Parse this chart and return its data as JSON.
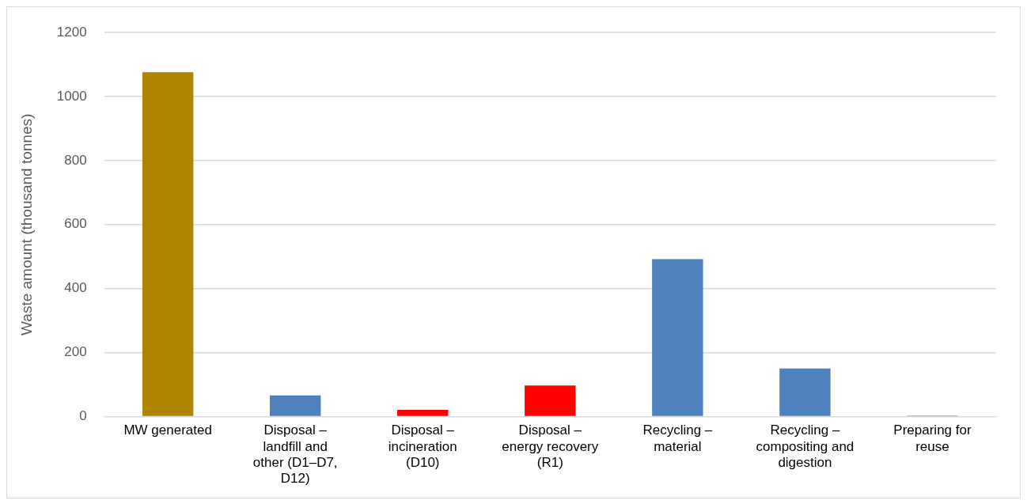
{
  "chart_data": {
    "type": "bar",
    "ylabel": "Waste amount (thousand tonnes)",
    "categories": [
      "MW generated",
      "Disposal – landfill and other (D1–D7, D12)",
      "Disposal – incineration (D10)",
      "Disposal – energy recovery (R1)",
      "Recycling – material",
      "Recycling – compositing and digestion",
      "Preparing for reuse"
    ],
    "values": [
      1076,
      66,
      21,
      97,
      492,
      150,
      3
    ],
    "colors": [
      "#b08600",
      "#4f81bd",
      "#ff0000",
      "#ff0000",
      "#4f81bd",
      "#4f81bd",
      "#4f81bd"
    ],
    "ylim": [
      0,
      1200
    ],
    "yticks": [
      0,
      200,
      400,
      600,
      800,
      1000,
      1200
    ],
    "grid": "y",
    "legend": false
  }
}
